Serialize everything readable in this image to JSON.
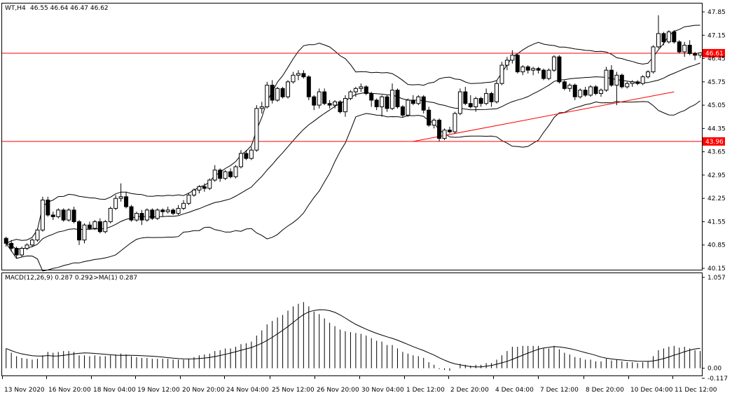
{
  "chart_data": {
    "type": "candlestick",
    "symbol_label": "WT,H4",
    "ohlc_label": "46.55 46.64 46.47 46.62",
    "price_axis": {
      "ticks": [
        "47.85",
        "47.15",
        "46.45",
        "45.75",
        "45.05",
        "44.35",
        "43.65",
        "42.95",
        "42.25",
        "41.55",
        "40.85",
        "40.15"
      ],
      "ylim": [
        40.15,
        47.85
      ]
    },
    "time_axis": {
      "labels": [
        "13 Nov 2020",
        "16 Nov 20:00",
        "18 Nov 04:00",
        "19 Nov 12:00",
        "20 Nov 20:00",
        "24 Nov 04:00",
        "25 Nov 12:00",
        "26 Nov 20:00",
        "30 Nov 04:00",
        "1 Dec 12:00",
        "2 Dec 20:00",
        "4 Dec 04:00",
        "7 Dec 12:00",
        "8 Dec 20:00",
        "10 Dec 04:00",
        "11 Dec 12:00"
      ]
    },
    "horizontal_levels": [
      {
        "value": 46.61,
        "label": "46.61",
        "color": "#ff0000"
      },
      {
        "value": 43.96,
        "label": "43.96",
        "color": "#ff0000"
      }
    ],
    "trendline": {
      "from": {
        "bar": 78,
        "price": 43.96
      },
      "to": {
        "bar": 128,
        "price": 45.45
      },
      "color": "#ff0000"
    },
    "candles": [
      [
        41.05,
        41.1,
        40.8,
        40.9
      ],
      [
        40.9,
        41.0,
        40.65,
        40.75
      ],
      [
        40.75,
        40.8,
        40.45,
        40.55
      ],
      [
        40.55,
        40.8,
        40.5,
        40.75
      ],
      [
        40.75,
        40.9,
        40.7,
        40.85
      ],
      [
        40.85,
        41.05,
        40.8,
        41.0
      ],
      [
        41.0,
        41.35,
        40.95,
        41.3
      ],
      [
        41.3,
        42.3,
        41.25,
        42.2
      ],
      [
        42.2,
        42.3,
        41.7,
        41.75
      ],
      [
        41.75,
        41.85,
        41.6,
        41.7
      ],
      [
        41.7,
        41.95,
        41.65,
        41.9
      ],
      [
        41.9,
        41.95,
        41.55,
        41.6
      ],
      [
        41.6,
        41.95,
        41.55,
        41.9
      ],
      [
        41.9,
        42.0,
        41.5,
        41.55
      ],
      [
        41.55,
        41.6,
        40.85,
        41.0
      ],
      [
        41.0,
        41.5,
        40.9,
        41.45
      ],
      [
        41.45,
        41.55,
        41.3,
        41.35
      ],
      [
        41.35,
        41.6,
        41.3,
        41.55
      ],
      [
        41.55,
        41.65,
        41.2,
        41.25
      ],
      [
        41.25,
        41.6,
        41.2,
        41.55
      ],
      [
        41.55,
        42.0,
        41.5,
        41.95
      ],
      [
        41.95,
        42.35,
        41.9,
        42.25
      ],
      [
        42.25,
        42.7,
        42.15,
        42.3
      ],
      [
        42.3,
        42.45,
        41.95,
        42.0
      ],
      [
        42.0,
        42.05,
        41.55,
        41.6
      ],
      [
        41.6,
        41.85,
        41.55,
        41.8
      ],
      [
        41.8,
        41.9,
        41.45,
        41.6
      ],
      [
        41.6,
        41.95,
        41.55,
        41.9
      ],
      [
        41.9,
        41.95,
        41.6,
        41.65
      ],
      [
        41.65,
        41.95,
        41.6,
        41.9
      ],
      [
        41.9,
        41.95,
        41.7,
        41.85
      ],
      [
        41.85,
        42.0,
        41.8,
        41.9
      ],
      [
        41.9,
        41.95,
        41.75,
        41.8
      ],
      [
        41.8,
        42.05,
        41.75,
        41.95
      ],
      [
        41.95,
        42.2,
        41.9,
        42.1
      ],
      [
        42.1,
        42.4,
        42.05,
        42.35
      ],
      [
        42.35,
        42.55,
        42.3,
        42.5
      ],
      [
        42.5,
        42.65,
        42.4,
        42.6
      ],
      [
        42.6,
        42.7,
        42.45,
        42.55
      ],
      [
        42.55,
        42.85,
        42.5,
        42.8
      ],
      [
        42.8,
        43.25,
        42.75,
        43.1
      ],
      [
        43.1,
        43.15,
        42.75,
        42.85
      ],
      [
        42.85,
        43.1,
        42.8,
        43.05
      ],
      [
        43.05,
        43.15,
        42.85,
        42.9
      ],
      [
        42.9,
        43.25,
        42.85,
        43.2
      ],
      [
        43.2,
        43.7,
        43.15,
        43.6
      ],
      [
        43.6,
        43.7,
        43.4,
        43.45
      ],
      [
        43.45,
        43.8,
        43.4,
        43.7
      ],
      [
        43.7,
        45.05,
        43.65,
        44.95
      ],
      [
        44.95,
        45.15,
        44.8,
        45.0
      ],
      [
        45.0,
        45.75,
        44.95,
        45.65
      ],
      [
        45.65,
        45.8,
        45.1,
        45.2
      ],
      [
        45.2,
        45.6,
        45.15,
        45.55
      ],
      [
        45.55,
        45.6,
        45.25,
        45.3
      ],
      [
        45.3,
        45.8,
        45.25,
        45.75
      ],
      [
        45.75,
        46.05,
        45.7,
        45.95
      ],
      [
        45.95,
        46.1,
        45.8,
        46.0
      ],
      [
        46.0,
        46.1,
        45.85,
        45.9
      ],
      [
        45.9,
        45.95,
        45.2,
        45.3
      ],
      [
        45.3,
        45.35,
        44.9,
        45.05
      ],
      [
        45.05,
        45.55,
        44.95,
        45.45
      ],
      [
        45.45,
        45.55,
        45.05,
        45.1
      ],
      [
        45.1,
        45.2,
        44.95,
        45.05
      ],
      [
        45.05,
        45.2,
        44.95,
        45.15
      ],
      [
        45.15,
        45.2,
        44.8,
        44.85
      ],
      [
        44.85,
        45.35,
        44.7,
        45.25
      ],
      [
        45.25,
        45.5,
        45.2,
        45.45
      ],
      [
        45.45,
        45.6,
        45.3,
        45.55
      ],
      [
        45.55,
        45.7,
        45.45,
        45.6
      ],
      [
        45.6,
        45.65,
        45.35,
        45.4
      ],
      [
        45.4,
        45.45,
        45.0,
        45.2
      ],
      [
        45.2,
        45.25,
        44.9,
        45.0
      ],
      [
        45.0,
        45.35,
        44.7,
        45.3
      ],
      [
        45.3,
        45.35,
        44.85,
        44.95
      ],
      [
        44.95,
        45.7,
        44.9,
        45.5
      ],
      [
        45.5,
        45.55,
        44.95,
        45.0
      ],
      [
        45.0,
        45.05,
        44.7,
        44.75
      ],
      [
        44.75,
        45.25,
        44.7,
        45.2
      ],
      [
        45.2,
        45.35,
        45.05,
        45.1
      ],
      [
        45.1,
        45.35,
        45.05,
        45.3
      ],
      [
        45.3,
        45.35,
        44.8,
        44.9
      ],
      [
        44.9,
        45.0,
        44.4,
        44.45
      ],
      [
        44.45,
        44.65,
        44.35,
        44.6
      ],
      [
        44.6,
        44.65,
        43.96,
        44.05
      ],
      [
        44.05,
        44.35,
        44.0,
        44.3
      ],
      [
        44.3,
        44.4,
        44.2,
        44.25
      ],
      [
        44.25,
        44.85,
        44.2,
        44.8
      ],
      [
        44.8,
        45.55,
        44.75,
        45.45
      ],
      [
        45.45,
        45.6,
        45.05,
        45.1
      ],
      [
        45.1,
        45.35,
        44.95,
        45.0
      ],
      [
        45.0,
        45.3,
        44.85,
        45.25
      ],
      [
        45.25,
        45.3,
        45.0,
        45.1
      ],
      [
        45.1,
        45.55,
        45.05,
        45.4
      ],
      [
        45.4,
        45.45,
        45.0,
        45.15
      ],
      [
        45.15,
        45.8,
        45.1,
        45.7
      ],
      [
        45.7,
        46.35,
        45.65,
        46.25
      ],
      [
        46.25,
        46.5,
        46.1,
        46.4
      ],
      [
        46.4,
        46.7,
        46.3,
        46.55
      ],
      [
        46.55,
        46.6,
        46.0,
        46.05
      ],
      [
        46.05,
        46.25,
        45.95,
        46.2
      ],
      [
        46.2,
        46.25,
        46.0,
        46.1
      ],
      [
        46.1,
        46.2,
        45.95,
        46.15
      ],
      [
        46.15,
        46.2,
        46.0,
        46.1
      ],
      [
        46.1,
        46.15,
        45.8,
        45.85
      ],
      [
        45.85,
        46.15,
        45.8,
        46.1
      ],
      [
        46.1,
        46.55,
        46.05,
        46.5
      ],
      [
        46.5,
        46.55,
        45.7,
        45.75
      ],
      [
        45.75,
        45.8,
        45.5,
        45.55
      ],
      [
        45.55,
        45.7,
        45.45,
        45.65
      ],
      [
        45.65,
        45.7,
        45.2,
        45.3
      ],
      [
        45.3,
        45.55,
        45.25,
        45.5
      ],
      [
        45.5,
        45.6,
        45.3,
        45.35
      ],
      [
        45.35,
        45.65,
        45.3,
        45.6
      ],
      [
        45.6,
        45.65,
        45.35,
        45.4
      ],
      [
        45.4,
        45.55,
        45.3,
        45.5
      ],
      [
        45.5,
        46.2,
        45.45,
        46.1
      ],
      [
        46.1,
        46.25,
        45.6,
        45.65
      ],
      [
        45.65,
        46.05,
        45.05,
        45.95
      ],
      [
        45.95,
        46.0,
        45.55,
        45.6
      ],
      [
        45.6,
        45.75,
        45.55,
        45.7
      ],
      [
        45.7,
        45.8,
        45.6,
        45.75
      ],
      [
        45.75,
        45.8,
        45.65,
        45.7
      ],
      [
        45.7,
        45.95,
        45.65,
        45.9
      ],
      [
        45.9,
        46.1,
        45.85,
        46.05
      ],
      [
        46.05,
        46.85,
        46.0,
        46.8
      ],
      [
        46.8,
        47.75,
        46.75,
        47.2
      ],
      [
        47.2,
        47.25,
        46.85,
        46.95
      ],
      [
        46.95,
        47.3,
        46.9,
        47.25
      ],
      [
        47.25,
        47.3,
        46.9,
        46.95
      ],
      [
        46.95,
        47.0,
        46.6,
        46.65
      ],
      [
        46.65,
        46.95,
        46.5,
        46.85
      ],
      [
        46.85,
        47.0,
        46.55,
        46.6
      ],
      [
        46.6,
        46.65,
        46.4,
        46.55
      ],
      [
        46.55,
        46.64,
        46.47,
        46.62
      ]
    ],
    "bollinger": {
      "period": 20,
      "deviation": 2,
      "color": "#000000"
    },
    "macd": {
      "label": "MACD(12,26,9) 0.287 0.292",
      "ma_label": "->MA(1) 0.287",
      "ticks": [
        "1.057",
        "0.00",
        "-0.117"
      ],
      "ylim": [
        -0.117,
        1.057
      ],
      "histogram": [
        0.23,
        0.18,
        0.14,
        0.12,
        0.11,
        0.1,
        0.11,
        0.15,
        0.19,
        0.18,
        0.19,
        0.2,
        0.2,
        0.19,
        0.15,
        0.15,
        0.14,
        0.15,
        0.14,
        0.14,
        0.15,
        0.16,
        0.17,
        0.16,
        0.14,
        0.13,
        0.12,
        0.12,
        0.11,
        0.11,
        0.11,
        0.11,
        0.1,
        0.1,
        0.1,
        0.11,
        0.13,
        0.15,
        0.16,
        0.17,
        0.2,
        0.21,
        0.23,
        0.23,
        0.25,
        0.28,
        0.29,
        0.31,
        0.38,
        0.44,
        0.51,
        0.55,
        0.59,
        0.62,
        0.67,
        0.72,
        0.75,
        0.77,
        0.72,
        0.66,
        0.63,
        0.58,
        0.53,
        0.49,
        0.45,
        0.43,
        0.42,
        0.41,
        0.4,
        0.38,
        0.35,
        0.32,
        0.31,
        0.27,
        0.27,
        0.23,
        0.19,
        0.17,
        0.15,
        0.14,
        0.12,
        0.07,
        0.04,
        -0.01,
        -0.02,
        -0.03,
        0.0,
        0.05,
        0.04,
        0.03,
        0.04,
        0.04,
        0.06,
        0.06,
        0.1,
        0.15,
        0.2,
        0.25,
        0.25,
        0.26,
        0.26,
        0.26,
        0.26,
        0.23,
        0.23,
        0.26,
        0.22,
        0.18,
        0.16,
        0.13,
        0.12,
        0.1,
        0.1,
        0.08,
        0.08,
        0.11,
        0.09,
        0.1,
        0.08,
        0.07,
        0.07,
        0.06,
        0.07,
        0.08,
        0.14,
        0.21,
        0.23,
        0.25,
        0.26,
        0.24,
        0.25,
        0.23,
        0.21,
        0.2
      ]
    }
  }
}
